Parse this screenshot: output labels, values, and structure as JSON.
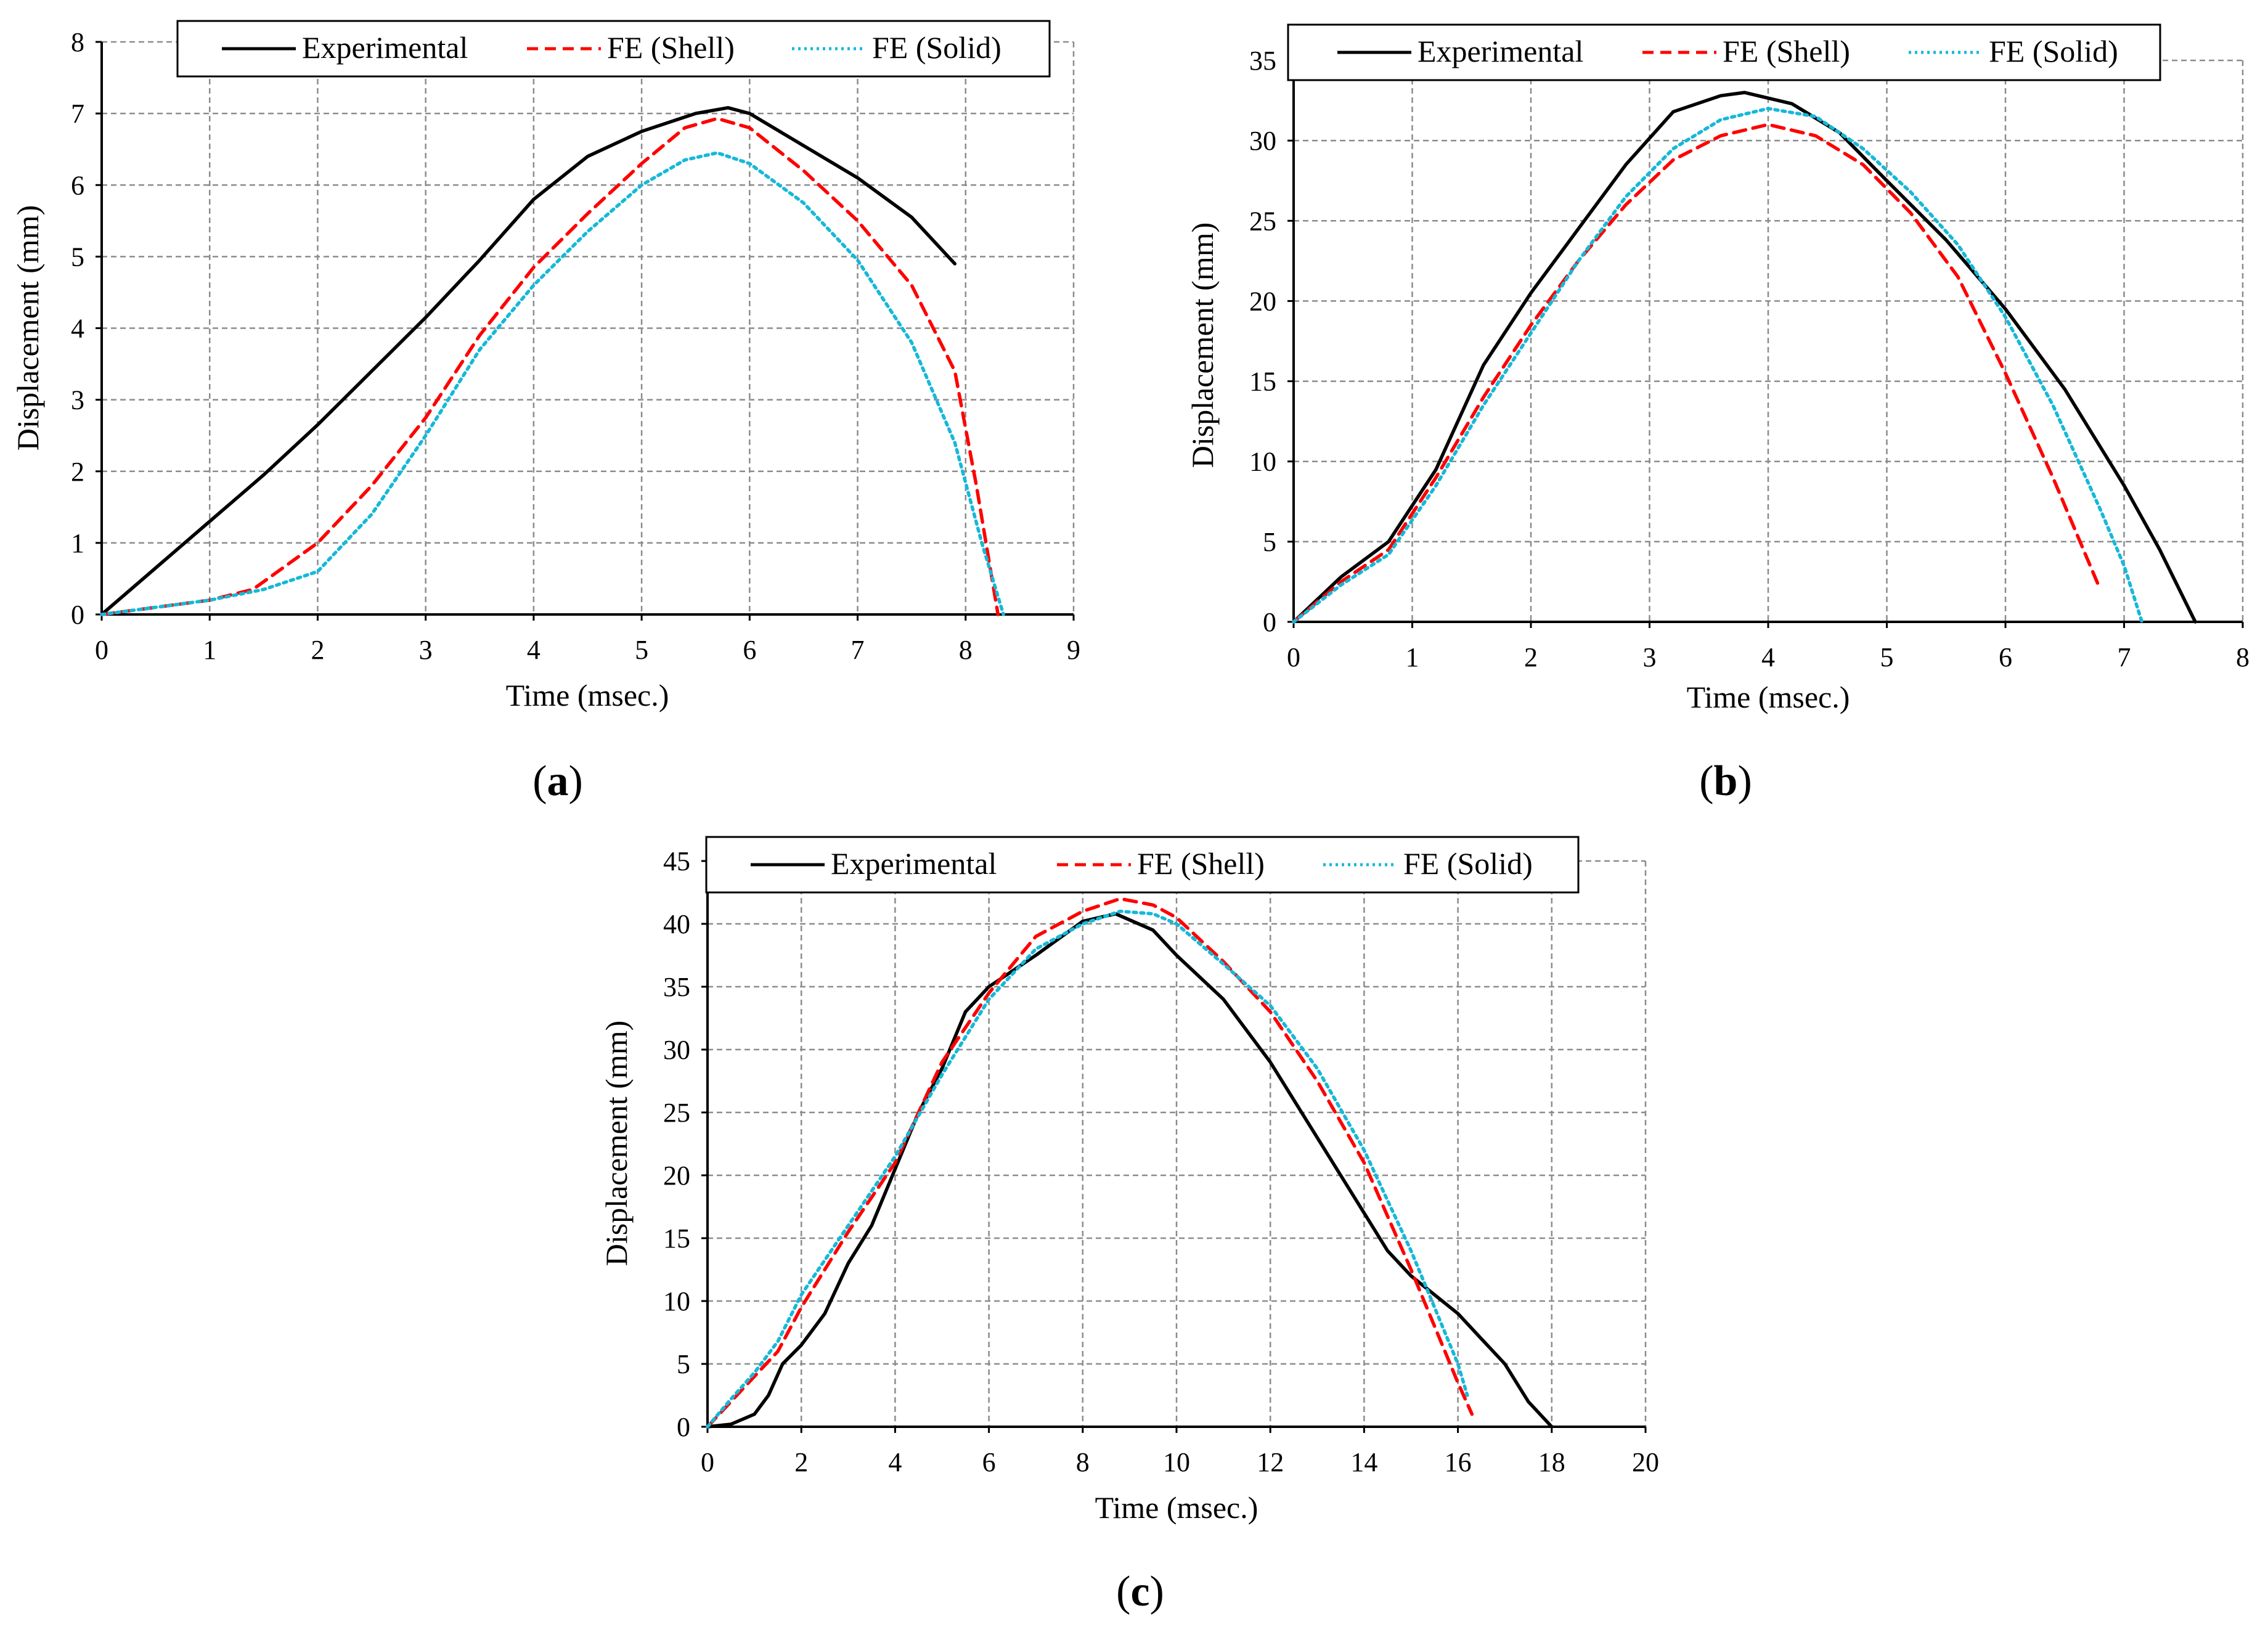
{
  "figure": {
    "colors": {
      "experimental": "#000000",
      "shell": "#ff0000",
      "solid": "#16b8d8",
      "grid": "#8c8c8c"
    }
  },
  "chart_data": [
    {
      "id": "a",
      "type": "line",
      "caption": {
        "open": "(",
        "letter": "a",
        "close": ")"
      },
      "xlabel": "Time (msec.)",
      "ylabel": "Displacement (mm)",
      "xlim": [
        0,
        9
      ],
      "ylim": [
        0,
        8
      ],
      "xticks": [
        0,
        1,
        2,
        3,
        4,
        5,
        6,
        7,
        8,
        9
      ],
      "yticks": [
        0,
        1,
        2,
        3,
        4,
        5,
        6,
        7,
        8
      ],
      "grid": true,
      "legend": "top",
      "series": [
        {
          "name": "Experimental",
          "style": "solid",
          "x": [
            0,
            0.5,
            1,
            1.5,
            2,
            2.5,
            3,
            3.5,
            4,
            4.5,
            5,
            5.5,
            5.8,
            6,
            6.5,
            7,
            7.5,
            7.9
          ],
          "y": [
            0,
            0.65,
            1.3,
            1.95,
            2.65,
            3.4,
            4.15,
            4.95,
            5.8,
            6.4,
            6.75,
            7.0,
            7.08,
            7.0,
            6.55,
            6.1,
            5.55,
            4.9
          ]
        },
        {
          "name": "FE (Shell)",
          "style": "dashed",
          "x": [
            0,
            0.5,
            1,
            1.4,
            2,
            2.5,
            3,
            3.5,
            4,
            4.5,
            5,
            5.4,
            5.7,
            6,
            6.5,
            7,
            7.5,
            7.9,
            8.1,
            8.3
          ],
          "y": [
            0,
            0.1,
            0.2,
            0.35,
            1.0,
            1.8,
            2.75,
            3.9,
            4.85,
            5.6,
            6.3,
            6.8,
            6.93,
            6.8,
            6.2,
            5.5,
            4.6,
            3.4,
            1.8,
            0
          ]
        },
        {
          "name": "FE (Solid)",
          "style": "dotted",
          "x": [
            0,
            0.5,
            1,
            1.5,
            2,
            2.5,
            3,
            3.5,
            4,
            4.5,
            5,
            5.4,
            5.7,
            6,
            6.5,
            7,
            7.5,
            7.9,
            8.15,
            8.35
          ],
          "y": [
            0,
            0.1,
            0.2,
            0.35,
            0.6,
            1.4,
            2.5,
            3.7,
            4.6,
            5.35,
            6.0,
            6.35,
            6.45,
            6.3,
            5.75,
            4.95,
            3.8,
            2.4,
            1.0,
            0
          ]
        }
      ]
    },
    {
      "id": "b",
      "type": "line",
      "caption": {
        "open": "(",
        "letter": "b",
        "close": ")"
      },
      "xlabel": "Time (msec.)",
      "ylabel": "Displacement (mm)",
      "xlim": [
        0,
        8
      ],
      "ylim": [
        0,
        35
      ],
      "xticks": [
        0,
        1,
        2,
        3,
        4,
        5,
        6,
        7,
        8
      ],
      "yticks": [
        0,
        5,
        10,
        15,
        20,
        25,
        30,
        35
      ],
      "grid": true,
      "legend": "top",
      "series": [
        {
          "name": "Experimental",
          "style": "solid",
          "x": [
            0,
            0.4,
            0.8,
            1.2,
            1.6,
            2,
            2.4,
            2.8,
            3.2,
            3.6,
            3.8,
            4.2,
            4.6,
            5,
            5.5,
            6,
            6.5,
            7,
            7.3,
            7.6
          ],
          "y": [
            0,
            2.8,
            5.0,
            9.5,
            16,
            20.5,
            24.5,
            28.5,
            31.8,
            32.8,
            33.0,
            32.3,
            30.5,
            27.5,
            23.8,
            19.5,
            14.5,
            8.5,
            4.5,
            0
          ]
        },
        {
          "name": "FE (Shell)",
          "style": "dashed",
          "x": [
            0,
            0.4,
            0.8,
            1.2,
            1.6,
            2,
            2.4,
            2.8,
            3.2,
            3.6,
            4,
            4.4,
            4.8,
            5.2,
            5.6,
            6,
            6.4,
            6.8
          ],
          "y": [
            0,
            2.5,
            4.5,
            9.0,
            14,
            18.5,
            22.5,
            26,
            28.8,
            30.3,
            31.0,
            30.3,
            28.5,
            25.5,
            21.5,
            15.5,
            9.0,
            2.0
          ]
        },
        {
          "name": "FE (Solid)",
          "style": "dotted",
          "x": [
            0,
            0.4,
            0.8,
            1.2,
            1.6,
            2,
            2.4,
            2.8,
            3.2,
            3.6,
            4,
            4.4,
            4.8,
            5.2,
            5.6,
            6,
            6.4,
            6.8,
            7.0,
            7.15
          ],
          "y": [
            0,
            2.3,
            4.2,
            8.5,
            13.5,
            18,
            22.5,
            26.5,
            29.5,
            31.3,
            32.0,
            31.5,
            29.5,
            26.8,
            23.5,
            19.0,
            13.5,
            7.0,
            3.5,
            0
          ]
        }
      ]
    },
    {
      "id": "c",
      "type": "line",
      "caption": {
        "open": "(",
        "letter": "c",
        "close": ")"
      },
      "xlabel": "Time (msec.)",
      "ylabel": "Displacement (mm)",
      "xlim": [
        0,
        20
      ],
      "ylim": [
        0,
        45
      ],
      "xticks": [
        0,
        2,
        4,
        6,
        8,
        10,
        12,
        14,
        16,
        18,
        20
      ],
      "yticks": [
        0,
        5,
        10,
        15,
        20,
        25,
        30,
        35,
        40,
        45
      ],
      "grid": true,
      "legend": "top",
      "series": [
        {
          "name": "Experimental",
          "style": "solid",
          "x": [
            0,
            0.5,
            1,
            1.3,
            1.6,
            2,
            2.5,
            3,
            3.5,
            4,
            4.5,
            5,
            5.5,
            6,
            7,
            8,
            8.7,
            9.5,
            10,
            11,
            12,
            13,
            14,
            14.5,
            15,
            16,
            16.5,
            17,
            17.5,
            18
          ],
          "y": [
            0,
            0.2,
            1.0,
            2.5,
            5.0,
            6.5,
            9.0,
            13,
            16,
            20.5,
            25,
            28.5,
            33,
            35,
            37.5,
            40.2,
            40.8,
            39.5,
            37.5,
            34,
            29,
            23,
            17,
            14,
            12,
            9,
            7,
            5,
            2,
            0
          ]
        },
        {
          "name": "FE (Shell)",
          "style": "dashed",
          "x": [
            0,
            0.5,
            1,
            1.5,
            2,
            3,
            4,
            5,
            6,
            7,
            8,
            8.8,
            9.5,
            10,
            11,
            12,
            13,
            14,
            15,
            15.5,
            16,
            16.3
          ],
          "y": [
            0,
            2,
            4,
            6,
            9.5,
            15.5,
            21,
            29,
            34.5,
            39,
            41,
            42,
            41.5,
            40.5,
            37,
            33,
            27.5,
            21,
            12.5,
            8,
            3.5,
            1
          ]
        },
        {
          "name": "FE (Solid)",
          "style": "dotted",
          "x": [
            0,
            0.5,
            1,
            1.5,
            2,
            3,
            4,
            5,
            6,
            7,
            8,
            8.8,
            9.5,
            10,
            11,
            12,
            13,
            14,
            15,
            15.5,
            16,
            16.2
          ],
          "y": [
            0,
            2.2,
            4.3,
            6.8,
            10.5,
            16,
            21.5,
            28,
            34,
            38,
            40,
            41,
            40.8,
            40,
            36.8,
            33.5,
            28.5,
            22,
            14,
            9.5,
            5,
            2.5
          ]
        }
      ]
    }
  ]
}
